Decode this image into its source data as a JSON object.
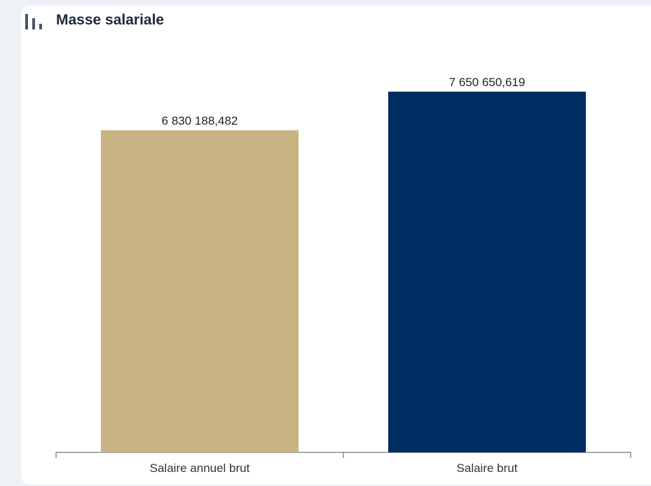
{
  "chart_data": {
    "type": "bar",
    "title": "Masse salariale",
    "categories": [
      "Salaire annuel brut",
      "Salaire brut"
    ],
    "values": [
      6830188.482,
      7650650.619
    ],
    "value_labels": [
      "6 830 188,482",
      "7 650 650,619"
    ],
    "colors": [
      "#c8b482",
      "#002d62"
    ],
    "xlabel": "",
    "ylabel": "",
    "ylim": [
      0,
      9000000
    ],
    "grid": false,
    "legend": "none"
  },
  "colors": {
    "axis": "#555555",
    "title": "#1f2a37",
    "icon": "#4a5568"
  },
  "icons": {
    "header": "bar-chart-icon"
  }
}
